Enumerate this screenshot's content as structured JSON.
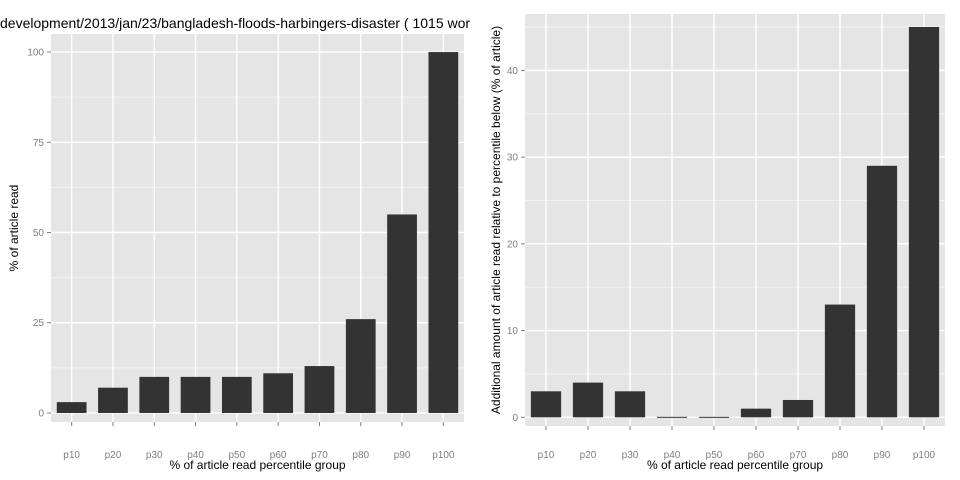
{
  "title": "development/2013/jan/23/bangladesh-floods-harbingers-disaster ( 1015 wor",
  "colors": {
    "panel": "#e5e5e5",
    "grid_major": "#ffffff",
    "grid_minor": "#f2f2f2",
    "bar": "#333333",
    "tick_text": "#7f7f7f"
  },
  "chart_data": [
    {
      "type": "bar",
      "xlabel": "% of article read percentile group",
      "ylabel": "% of article read",
      "categories": [
        "p10",
        "p20",
        "p30",
        "p40",
        "p50",
        "p60",
        "p70",
        "p80",
        "p90",
        "p100"
      ],
      "values": [
        3,
        7,
        10,
        10,
        10,
        11,
        13,
        26,
        55,
        100
      ],
      "ylim": [
        -2.5,
        105
      ],
      "yticks": [
        0,
        25,
        50,
        75,
        100
      ],
      "grid": true
    },
    {
      "type": "bar",
      "xlabel": "% of article read percentile group",
      "ylabel": "Additional amount of article read relative to percentile below (% of article)",
      "categories": [
        "p10",
        "p20",
        "p30",
        "p40",
        "p50",
        "p60",
        "p70",
        "p80",
        "p90",
        "p100"
      ],
      "values": [
        3,
        4,
        3,
        0,
        0,
        1,
        2,
        13,
        29,
        45
      ],
      "ylim": [
        -1,
        46.5
      ],
      "yticks": [
        0,
        10,
        20,
        30,
        40
      ],
      "grid": true
    }
  ]
}
